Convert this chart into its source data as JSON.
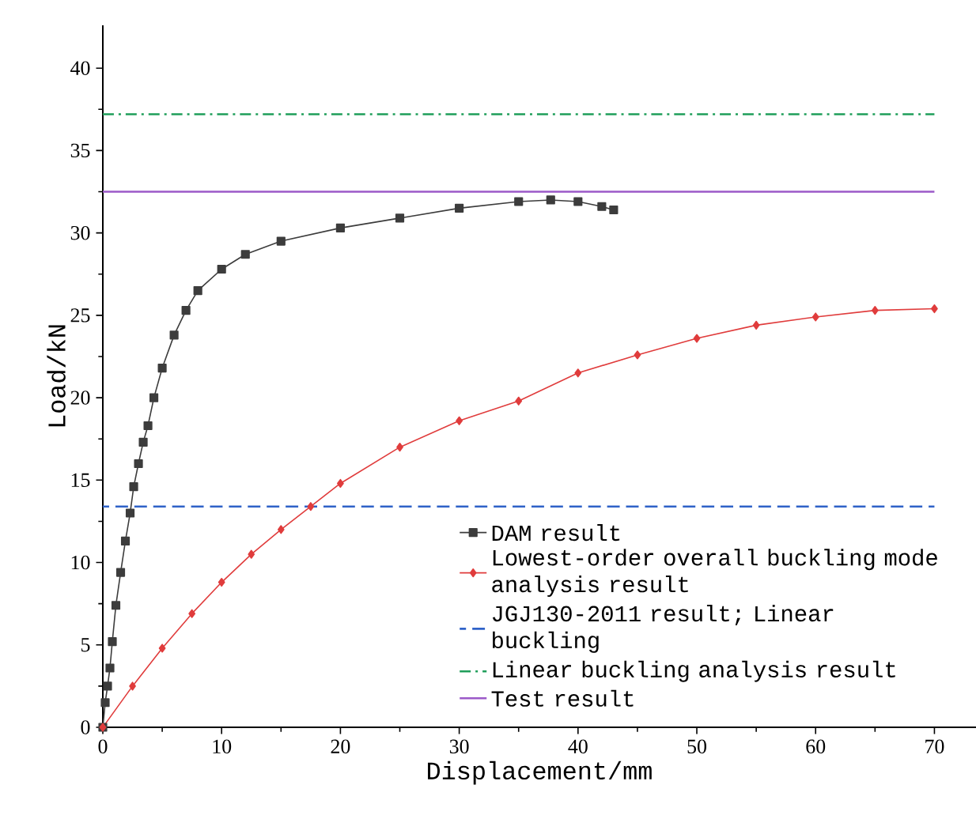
{
  "chart_data": {
    "type": "line",
    "xlabel": "Displacement/mm",
    "ylabel": "Load/kN",
    "xlim": [
      0,
      73.5
    ],
    "ylim": [
      0,
      42.6
    ],
    "xticks": [
      0,
      10,
      20,
      30,
      40,
      50,
      60,
      70
    ],
    "yticks": [
      0,
      5,
      10,
      15,
      20,
      25,
      30,
      35,
      40
    ],
    "legend": "bottom right",
    "grid": false,
    "series": [
      {
        "name": "DAM result",
        "color": "#3c3c3c",
        "marker": "square",
        "line_style": "solid",
        "x": [
          0,
          0.2,
          0.4,
          0.6,
          0.8,
          1.1,
          1.5,
          1.9,
          2.3,
          2.6,
          3.0,
          3.4,
          3.8,
          4.3,
          5,
          6,
          7,
          8,
          10,
          12,
          15,
          20,
          25,
          30,
          35,
          37.7,
          40,
          42,
          43
        ],
        "values": [
          0,
          1.5,
          2.5,
          3.6,
          5.2,
          7.4,
          9.4,
          11.3,
          13,
          14.6,
          16,
          17.3,
          18.3,
          20,
          21.8,
          23.8,
          25.3,
          26.5,
          27.8,
          28.7,
          29.5,
          30.3,
          30.9,
          31.5,
          31.9,
          32,
          31.9,
          31.6,
          31.4
        ]
      },
      {
        "name": "Lowest-order overall buckling mode analysis result",
        "color": "#e03c3c",
        "marker": "diamond",
        "line_style": "solid",
        "x": [
          0,
          2.5,
          5,
          7.5,
          10,
          12.5,
          15,
          17.5,
          20,
          25,
          30,
          35,
          40,
          45,
          50,
          55,
          60,
          65,
          70
        ],
        "values": [
          0,
          2.5,
          4.8,
          6.9,
          8.8,
          10.5,
          12,
          13.4,
          14.8,
          17,
          18.6,
          19.8,
          21.5,
          22.6,
          23.6,
          24.4,
          24.9,
          25.3,
          25.4
        ]
      },
      {
        "name": "JGJ130-2011 result; Linear buckling",
        "color": "#2f62c8",
        "marker": "none",
        "line_style": "dashed",
        "x": [
          0,
          70
        ],
        "values": [
          13.4,
          13.4
        ]
      },
      {
        "name": "Linear buckling analysis result",
        "color": "#1f9e5a",
        "marker": "none",
        "line_style": "dashdot",
        "x": [
          0,
          70
        ],
        "values": [
          37.2,
          37.2
        ]
      },
      {
        "name": "Test result",
        "color": "#9b59c8",
        "marker": "none",
        "line_style": "solid",
        "x": [
          0,
          70
        ],
        "values": [
          32.5,
          32.5
        ]
      }
    ]
  }
}
